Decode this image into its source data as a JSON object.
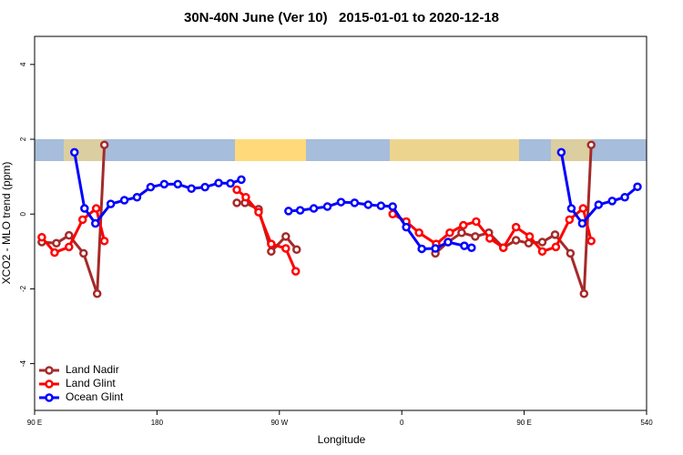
{
  "chart_data": {
    "type": "line",
    "title": "30N-40N June (Ver 10)   2015-01-01 to 2020-12-18",
    "x_label": "Longitude",
    "y_label": "XCO2 - MLO trend (ppm)",
    "xlim": [
      90,
      540
    ],
    "xticks": [
      {
        "value": 90,
        "label": "90 E"
      },
      180,
      {
        "value": 270,
        "label": "90 W"
      },
      {
        "value": 360,
        "label": "0"
      },
      {
        "value": 450,
        "label": "90 E"
      },
      540
    ],
    "ylim": [
      -5.25,
      4.75
    ],
    "yticks": [
      -4,
      -2,
      0,
      2,
      4
    ],
    "legend": "bottom-left",
    "series": [
      {
        "name": "Land Nadir",
        "color": "#a52a2a",
        "x": [
          95.3,
          106,
          115.3,
          126,
          136,
          141.3,
          null,
          238.7,
          244.7,
          254.7,
          264,
          274.7,
          282.7,
          null,
          384.7,
          394,
          404,
          414,
          424,
          434.7,
          444,
          453.3,
          463.3,
          472.7,
          484,
          494,
          499.3
        ],
        "values": [
          -0.75,
          -0.78,
          -0.57,
          -1.05,
          -2.13,
          1.85,
          null,
          0.3,
          0.3,
          0.13,
          -1.0,
          -0.6,
          -0.95,
          null,
          -1.05,
          -0.75,
          -0.5,
          -0.6,
          -0.5,
          -0.9,
          -0.7,
          -0.78,
          -0.75,
          -0.55,
          -1.05,
          -2.13,
          1.85
        ]
      },
      {
        "name": "Land Glint",
        "color": "#ff0000",
        "x": [
          95.3,
          104.7,
          115.3,
          125.3,
          135.3,
          141.3,
          null,
          238.7,
          245.3,
          254.7,
          264,
          274.7,
          282,
          null,
          353.3,
          363.3,
          372.7,
          385.3,
          395.3,
          405.3,
          414.7,
          424.7,
          434.7,
          444,
          454,
          463.3,
          473.3,
          483.3,
          493.3,
          499.3
        ],
        "values": [
          -0.62,
          -1.03,
          -0.88,
          -0.15,
          0.15,
          -0.72,
          null,
          0.65,
          0.45,
          0.05,
          -0.8,
          -0.92,
          -1.53,
          null,
          0,
          -0.2,
          -0.5,
          -0.8,
          -0.5,
          -0.3,
          -0.2,
          -0.65,
          -0.9,
          -0.35,
          -0.6,
          -1.0,
          -0.88,
          -0.15,
          0.15,
          -0.72
        ]
      },
      {
        "name": "Ocean Glint",
        "color": "#0000ff",
        "x": [
          119.3,
          126.7,
          134.7,
          146,
          156,
          165.3,
          175.3,
          185.3,
          195.3,
          205.3,
          215.3,
          225.3,
          234,
          242,
          null,
          276.7,
          285.3,
          295.3,
          305.3,
          315.3,
          325.3,
          335.3,
          344.7,
          353.3,
          363.3,
          374.7,
          384.7,
          394,
          406,
          411.3,
          null,
          477.3,
          484.7,
          492.7,
          504.7,
          514.7,
          524,
          533.3
        ],
        "values": [
          1.65,
          0.15,
          -0.25,
          0.27,
          0.37,
          0.45,
          0.72,
          0.8,
          0.8,
          0.68,
          0.72,
          0.83,
          0.82,
          0.92,
          null,
          0.08,
          0.1,
          0.15,
          0.2,
          0.32,
          0.3,
          0.25,
          0.22,
          0.2,
          -0.35,
          -0.93,
          -0.92,
          -0.75,
          -0.85,
          -0.9,
          null,
          1.65,
          0.15,
          -0.25,
          0.25,
          0.35,
          0.45,
          0.73
        ]
      }
    ]
  }
}
